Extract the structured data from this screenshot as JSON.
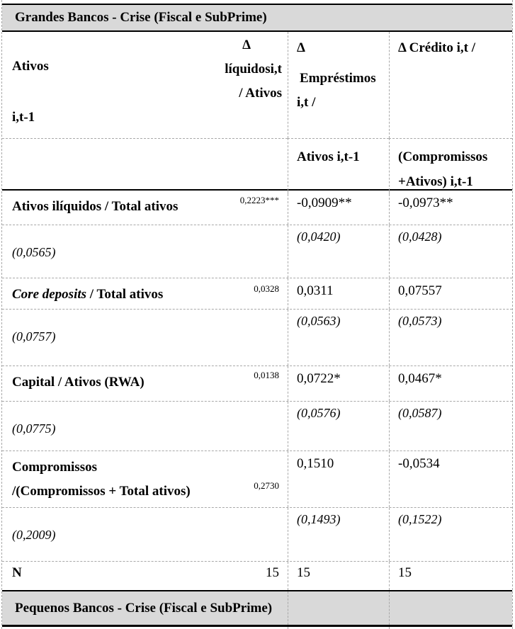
{
  "colors": {
    "section_band": "#d9d9d9",
    "gridline": "#a8a8a8",
    "border": "#000000"
  },
  "sections": {
    "grandes": "Grandes Bancos - Crise (Fiscal e SubPrime)",
    "pequenos": "Pequenos Bancos - Crise (Fiscal e SubPrime)"
  },
  "header": {
    "col1_left": [
      "Ativos",
      "i,t-1"
    ],
    "col1_right": [
      "Δ",
      "líquidosi,t",
      "/ Ativos"
    ],
    "col2_lines": [
      "Δ",
      "Empréstimos",
      "i,t /"
    ],
    "col2_sub": "Ativos i,t-1",
    "col3_line": "Δ Crédito i,t /",
    "col3_sub": [
      "(Compromissos",
      "+Ativos) i,t-1"
    ]
  },
  "rows": [
    {
      "label_lines": [
        [
          {
            "t": "Ativos ilíquidos / Total ativos",
            "s": "b"
          }
        ]
      ],
      "liq": "0,2223***",
      "emp": "-0,0909**",
      "cred": "-0,0973**",
      "liq_se": "(0,0565)",
      "emp_se": "(0,0420)",
      "cred_se": "(0,0428)"
    },
    {
      "label_lines": [
        [
          {
            "t": "Core deposits",
            "s": "bi"
          },
          {
            "t": " / Total ativos",
            "s": "b"
          }
        ]
      ],
      "liq": "0,0328",
      "emp": "0,0311",
      "cred": "0,07557",
      "liq_se": "(0,0757)",
      "emp_se": "(0,0563)",
      "cred_se": "(0,0573)"
    },
    {
      "label_lines": [
        [
          {
            "t": "Capital / Ativos (RWA)",
            "s": "b"
          }
        ]
      ],
      "liq": "0,0138",
      "emp": "0,0722*",
      "cred": "0,0467*",
      "liq_se": "(0,0775)",
      "emp_se": "(0,0576)",
      "cred_se": "(0,0587)"
    },
    {
      "label_lines": [
        [
          {
            "t": "Compromissos",
            "s": "b"
          }
        ],
        [
          {
            "t": "/(Compromissos + Total ativos)",
            "s": "b"
          }
        ]
      ],
      "liq": "0,2730",
      "emp": "0,1510",
      "cred": "-0,0534",
      "liq_se": "(0,2009)",
      "emp_se": "(0,1493)",
      "cred_se": "(0,1522)"
    }
  ],
  "n_row": {
    "label": "N",
    "liq": "15",
    "emp": "15",
    "cred": "15"
  }
}
